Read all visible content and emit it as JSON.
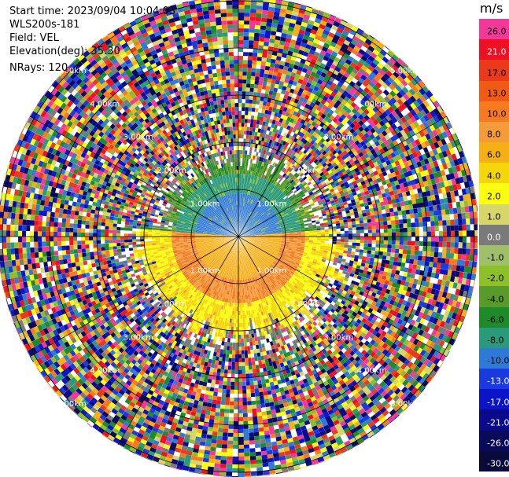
{
  "header": {
    "start_time": "Start time: 2023/09/04 10:04:03",
    "instrument": "WLS200s-181",
    "field": "Field: VEL",
    "elevation": "Elevation(deg): 35.30",
    "nrays": "NRays: 120"
  },
  "colorbar": {
    "unit": "m/s",
    "levels": [
      {
        "label": "26.0",
        "color": "#f2389a",
        "text": "#000000"
      },
      {
        "label": "21.0",
        "color": "#f01024",
        "text": "#ffffff"
      },
      {
        "label": "17.0",
        "color": "#ea3a1c",
        "text": "#000000"
      },
      {
        "label": "13.0",
        "color": "#f05a14",
        "text": "#000000"
      },
      {
        "label": "10.0",
        "color": "#f57a20",
        "text": "#000000"
      },
      {
        "label": "8.0",
        "color": "#f59c3a",
        "text": "#000000"
      },
      {
        "label": "6.0",
        "color": "#f5b016",
        "text": "#000000"
      },
      {
        "label": "4.0",
        "color": "#f5d60a",
        "text": "#000000"
      },
      {
        "label": "2.0",
        "color": "#fafc12",
        "text": "#000000"
      },
      {
        "label": "1.0",
        "color": "#d6d66a",
        "text": "#000000"
      },
      {
        "label": "0.0",
        "color": "#7a7a7a",
        "text": "#ffffff"
      },
      {
        "label": "-1.0",
        "color": "#9fbf6a",
        "text": "#000000"
      },
      {
        "label": "-2.0",
        "color": "#8cbf2a",
        "text": "#000000"
      },
      {
        "label": "-4.0",
        "color": "#5a9a2a",
        "text": "#000000"
      },
      {
        "label": "-6.0",
        "color": "#1e8a2a",
        "text": "#000000"
      },
      {
        "label": "-8.0",
        "color": "#2a9a7a",
        "text": "#000000"
      },
      {
        "label": "-10.0",
        "color": "#2f7ad6",
        "text": "#000000"
      },
      {
        "label": "-13.0",
        "color": "#1a3ae0",
        "text": "#ffffff"
      },
      {
        "label": "-17.0",
        "color": "#0a14c8",
        "text": "#ffffff"
      },
      {
        "label": "-21.0",
        "color": "#0a0a8a",
        "text": "#ffffff"
      },
      {
        "label": "-26.0",
        "color": "#0a0a5a",
        "text": "#ffffff"
      },
      {
        "label": "-30.0",
        "color": "#0a0a3a",
        "text": "#ffffff"
      }
    ]
  },
  "range_rings": [
    {
      "label": "1.00km",
      "km": 1
    },
    {
      "label": "2.00km",
      "km": 2
    },
    {
      "label": "3.00km",
      "km": 3
    },
    {
      "label": "4.00km",
      "km": 4
    },
    {
      "label": "5.00km",
      "km": 5
    }
  ],
  "scan": {
    "max_range_km": 5.1,
    "num_rays": 120
  }
}
